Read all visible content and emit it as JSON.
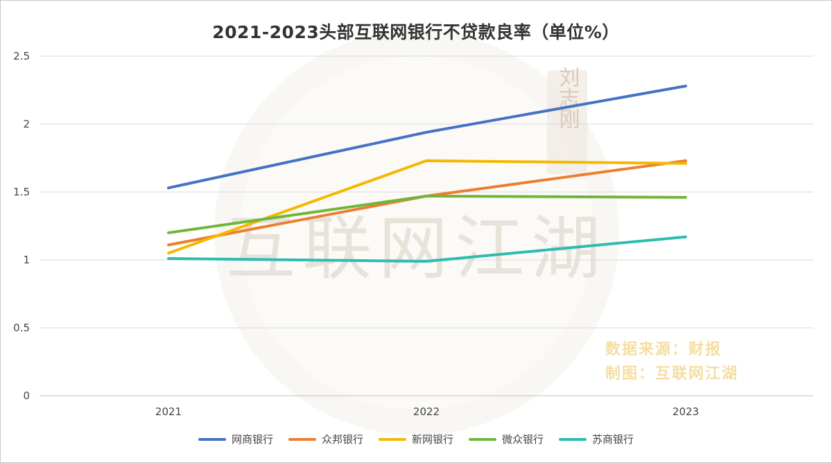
{
  "chart_data": {
    "type": "line",
    "title": "2021-2023头部互联网银行不贷款良率（单位%）",
    "x": [
      "2021",
      "2022",
      "2023"
    ],
    "y_ticks": [
      "0",
      "0.5",
      "1",
      "1.5",
      "2",
      "2.5"
    ],
    "ylim": [
      0,
      2.5
    ],
    "grid": "horizontal",
    "legend_position": "bottom",
    "series": [
      {
        "name": "网商银行",
        "color": "#4472c4",
        "values": [
          1.53,
          1.94,
          2.28
        ]
      },
      {
        "name": "众邦银行",
        "color": "#ed7d31",
        "values": [
          1.11,
          1.47,
          1.73
        ]
      },
      {
        "name": "新网银行",
        "color": "#f4b800",
        "values": [
          1.05,
          1.73,
          1.71
        ]
      },
      {
        "name": "微众银行",
        "color": "#70b63b",
        "values": [
          1.2,
          1.47,
          1.46
        ]
      },
      {
        "name": "苏商银行",
        "color": "#2ebbb0",
        "values": [
          1.01,
          0.99,
          1.17
        ]
      }
    ]
  },
  "watermark": {
    "main": "互联网江湖",
    "seal": "刘志刚",
    "source_note": "数据来源：财报",
    "made_by_note": "制图：互联网江湖"
  }
}
